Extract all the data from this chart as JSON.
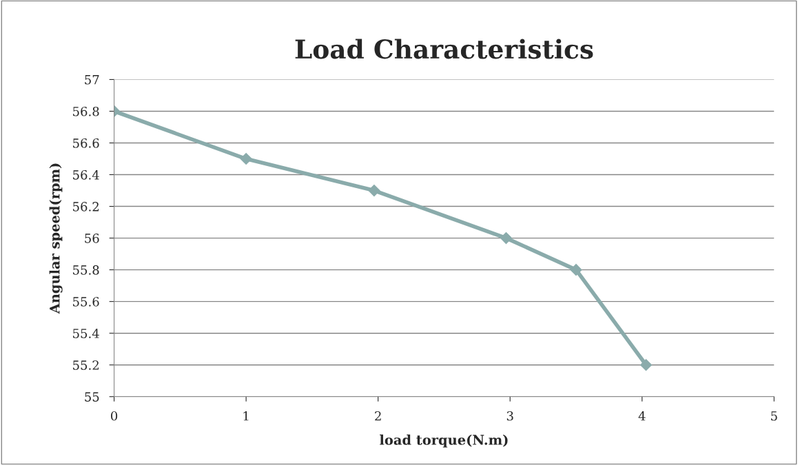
{
  "chart_data": {
    "type": "line",
    "title": "Load Characteristics",
    "xlabel": "load torque(N.m)",
    "ylabel": "Angular speed(rpm)",
    "x": [
      0,
      1,
      1.97,
      2.97,
      3.5,
      4.03
    ],
    "series": [
      {
        "color": "#8aabab",
        "values": [
          56.8,
          56.5,
          56.3,
          56.0,
          55.8,
          55.2
        ]
      }
    ],
    "xlim": [
      0,
      5
    ],
    "xticks": [
      0,
      1,
      2,
      3,
      4,
      5
    ],
    "ylim": [
      55,
      57
    ],
    "yticks": [
      55,
      {
        "value": 55.2,
        "label": "55.2"
      },
      {
        "value": 55.4,
        "label": "55.4"
      },
      {
        "value": 55.6,
        "label": "55.6"
      },
      {
        "value": 55.8,
        "label": "55.8"
      },
      56,
      {
        "value": 56.2,
        "label": "56.2"
      },
      {
        "value": 56.4,
        "label": "56.4"
      },
      {
        "value": 56.6,
        "label": "56.6"
      },
      {
        "value": 56.8,
        "label": "56.8"
      },
      57
    ],
    "grid": "y",
    "marker": "diamond",
    "line_style": "solid"
  }
}
